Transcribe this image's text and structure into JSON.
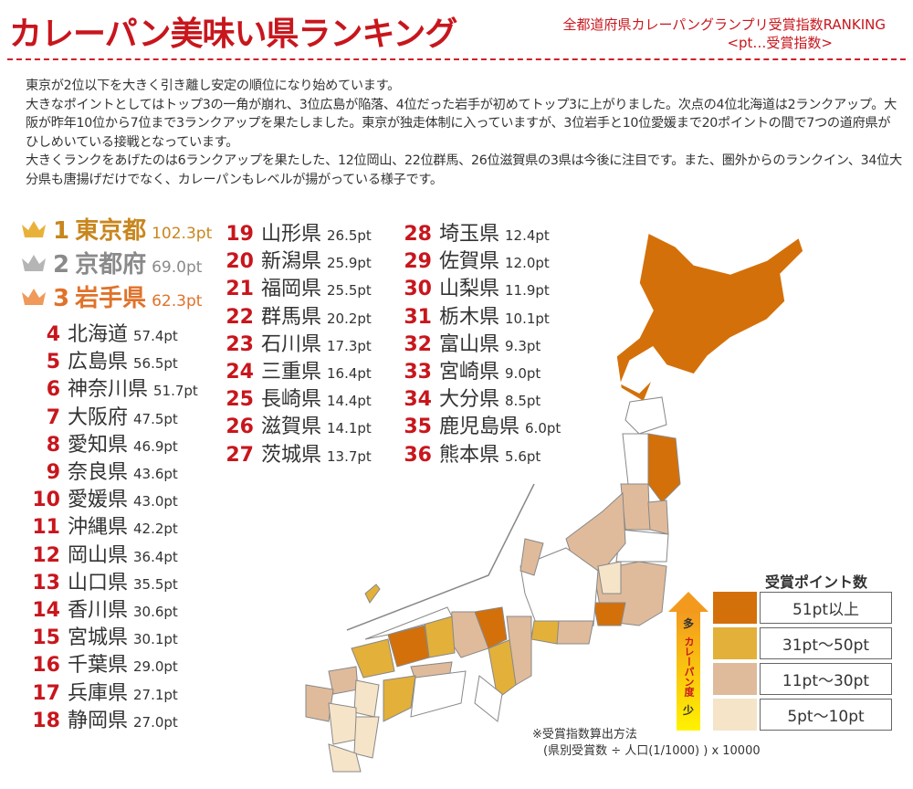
{
  "title": "カレーパン美味い県ランキング",
  "subtitle1": "全都道府県カレーパングランプリ受賞指数RANKING",
  "subtitle2": "<pt…受賞指数>",
  "intro": [
    "東京が2位以下を大きく引き離し安定の順位になり始めています。",
    "大きなポイントとしてはトップ3の一角が崩れ、3位広島が陥落、4位だった岩手が初めてトップ3に上がりました。次点の4位北海道は2ランクアップ。大阪が昨年10位から7位まで3ランクアップを果たしました。東京が独走体制に入っていますが、3位岩手と10位愛媛まで20ポイントの間で7つの道府県がひしめいている接戦となっています。",
    "大きくランクをあげたのは6ランクアップを果たした、12位岡山、22位群馬、26位滋賀県の3県は今後に注目です。また、圏外からのランクイン、34位大分県も唐揚げだけでなく、カレーパンもレベルが揚がっている様子です。"
  ],
  "top3": [
    {
      "rank": "1",
      "name": "東京都",
      "pt": "102.3pt",
      "color": "#c8861e",
      "crown": "#e8b23a"
    },
    {
      "rank": "2",
      "name": "京都府",
      "pt": "69.0pt",
      "color": "#8a8a8a",
      "crown": "#b5b5b5"
    },
    {
      "rank": "3",
      "name": "岩手県",
      "pt": "62.3pt",
      "color": "#e0722a",
      "crown": "#ef9a5a"
    }
  ],
  "rankings": [
    {
      "rank": "4",
      "name": "北海道",
      "pt": "57.4pt"
    },
    {
      "rank": "5",
      "name": "広島県",
      "pt": "56.5pt"
    },
    {
      "rank": "6",
      "name": "神奈川県",
      "pt": "51.7pt"
    },
    {
      "rank": "7",
      "name": "大阪府",
      "pt": "47.5pt"
    },
    {
      "rank": "8",
      "name": "愛知県",
      "pt": "46.9pt"
    },
    {
      "rank": "9",
      "name": "奈良県",
      "pt": "43.6pt"
    },
    {
      "rank": "10",
      "name": "愛媛県",
      "pt": "43.0pt"
    },
    {
      "rank": "11",
      "name": "沖縄県",
      "pt": "42.2pt"
    },
    {
      "rank": "12",
      "name": "岡山県",
      "pt": "36.4pt"
    },
    {
      "rank": "13",
      "name": "山口県",
      "pt": "35.5pt"
    },
    {
      "rank": "14",
      "name": "香川県",
      "pt": "30.6pt"
    },
    {
      "rank": "15",
      "name": "宮城県",
      "pt": "30.1pt"
    },
    {
      "rank": "16",
      "name": "千葉県",
      "pt": "29.0pt"
    },
    {
      "rank": "17",
      "name": "兵庫県",
      "pt": "27.1pt"
    },
    {
      "rank": "18",
      "name": "静岡県",
      "pt": "27.0pt"
    },
    {
      "rank": "19",
      "name": "山形県",
      "pt": "26.5pt"
    },
    {
      "rank": "20",
      "name": "新潟県",
      "pt": "25.9pt"
    },
    {
      "rank": "21",
      "name": "福岡県",
      "pt": "25.5pt"
    },
    {
      "rank": "22",
      "name": "群馬県",
      "pt": "20.2pt"
    },
    {
      "rank": "23",
      "name": "石川県",
      "pt": "17.3pt"
    },
    {
      "rank": "24",
      "name": "三重県",
      "pt": "16.4pt"
    },
    {
      "rank": "25",
      "name": "長崎県",
      "pt": "14.4pt"
    },
    {
      "rank": "26",
      "name": "滋賀県",
      "pt": "14.1pt"
    },
    {
      "rank": "27",
      "name": "茨城県",
      "pt": "13.7pt"
    },
    {
      "rank": "28",
      "name": "埼玉県",
      "pt": "12.4pt"
    },
    {
      "rank": "29",
      "name": "佐賀県",
      "pt": "12.0pt"
    },
    {
      "rank": "30",
      "name": "山梨県",
      "pt": "11.9pt"
    },
    {
      "rank": "31",
      "name": "栃木県",
      "pt": "10.1pt"
    },
    {
      "rank": "32",
      "name": "富山県",
      "pt": "9.3pt"
    },
    {
      "rank": "33",
      "name": "宮崎県",
      "pt": "9.0pt"
    },
    {
      "rank": "34",
      "name": "大分県",
      "pt": "8.5pt"
    },
    {
      "rank": "35",
      "name": "鹿児島県",
      "pt": "6.0pt"
    },
    {
      "rank": "36",
      "name": "熊本県",
      "pt": "5.6pt"
    }
  ],
  "legend": {
    "title": "受賞ポイント数",
    "items": [
      {
        "label": "51pt以上",
        "color": "#d4700a"
      },
      {
        "label": "31pt〜50pt",
        "color": "#e3b03a"
      },
      {
        "label": "11pt〜30pt",
        "color": "#dfbb9c"
      },
      {
        "label": "5pt〜10pt",
        "color": "#f6e4c9"
      }
    ],
    "arrow_top": "多",
    "arrow_mid": "カレーパン度",
    "arrow_bottom": "少"
  },
  "note": {
    "line1": "※受賞指数算出方法",
    "line2": "(県別受賞数 ÷ 人口(1/1000) ) x 10000"
  }
}
